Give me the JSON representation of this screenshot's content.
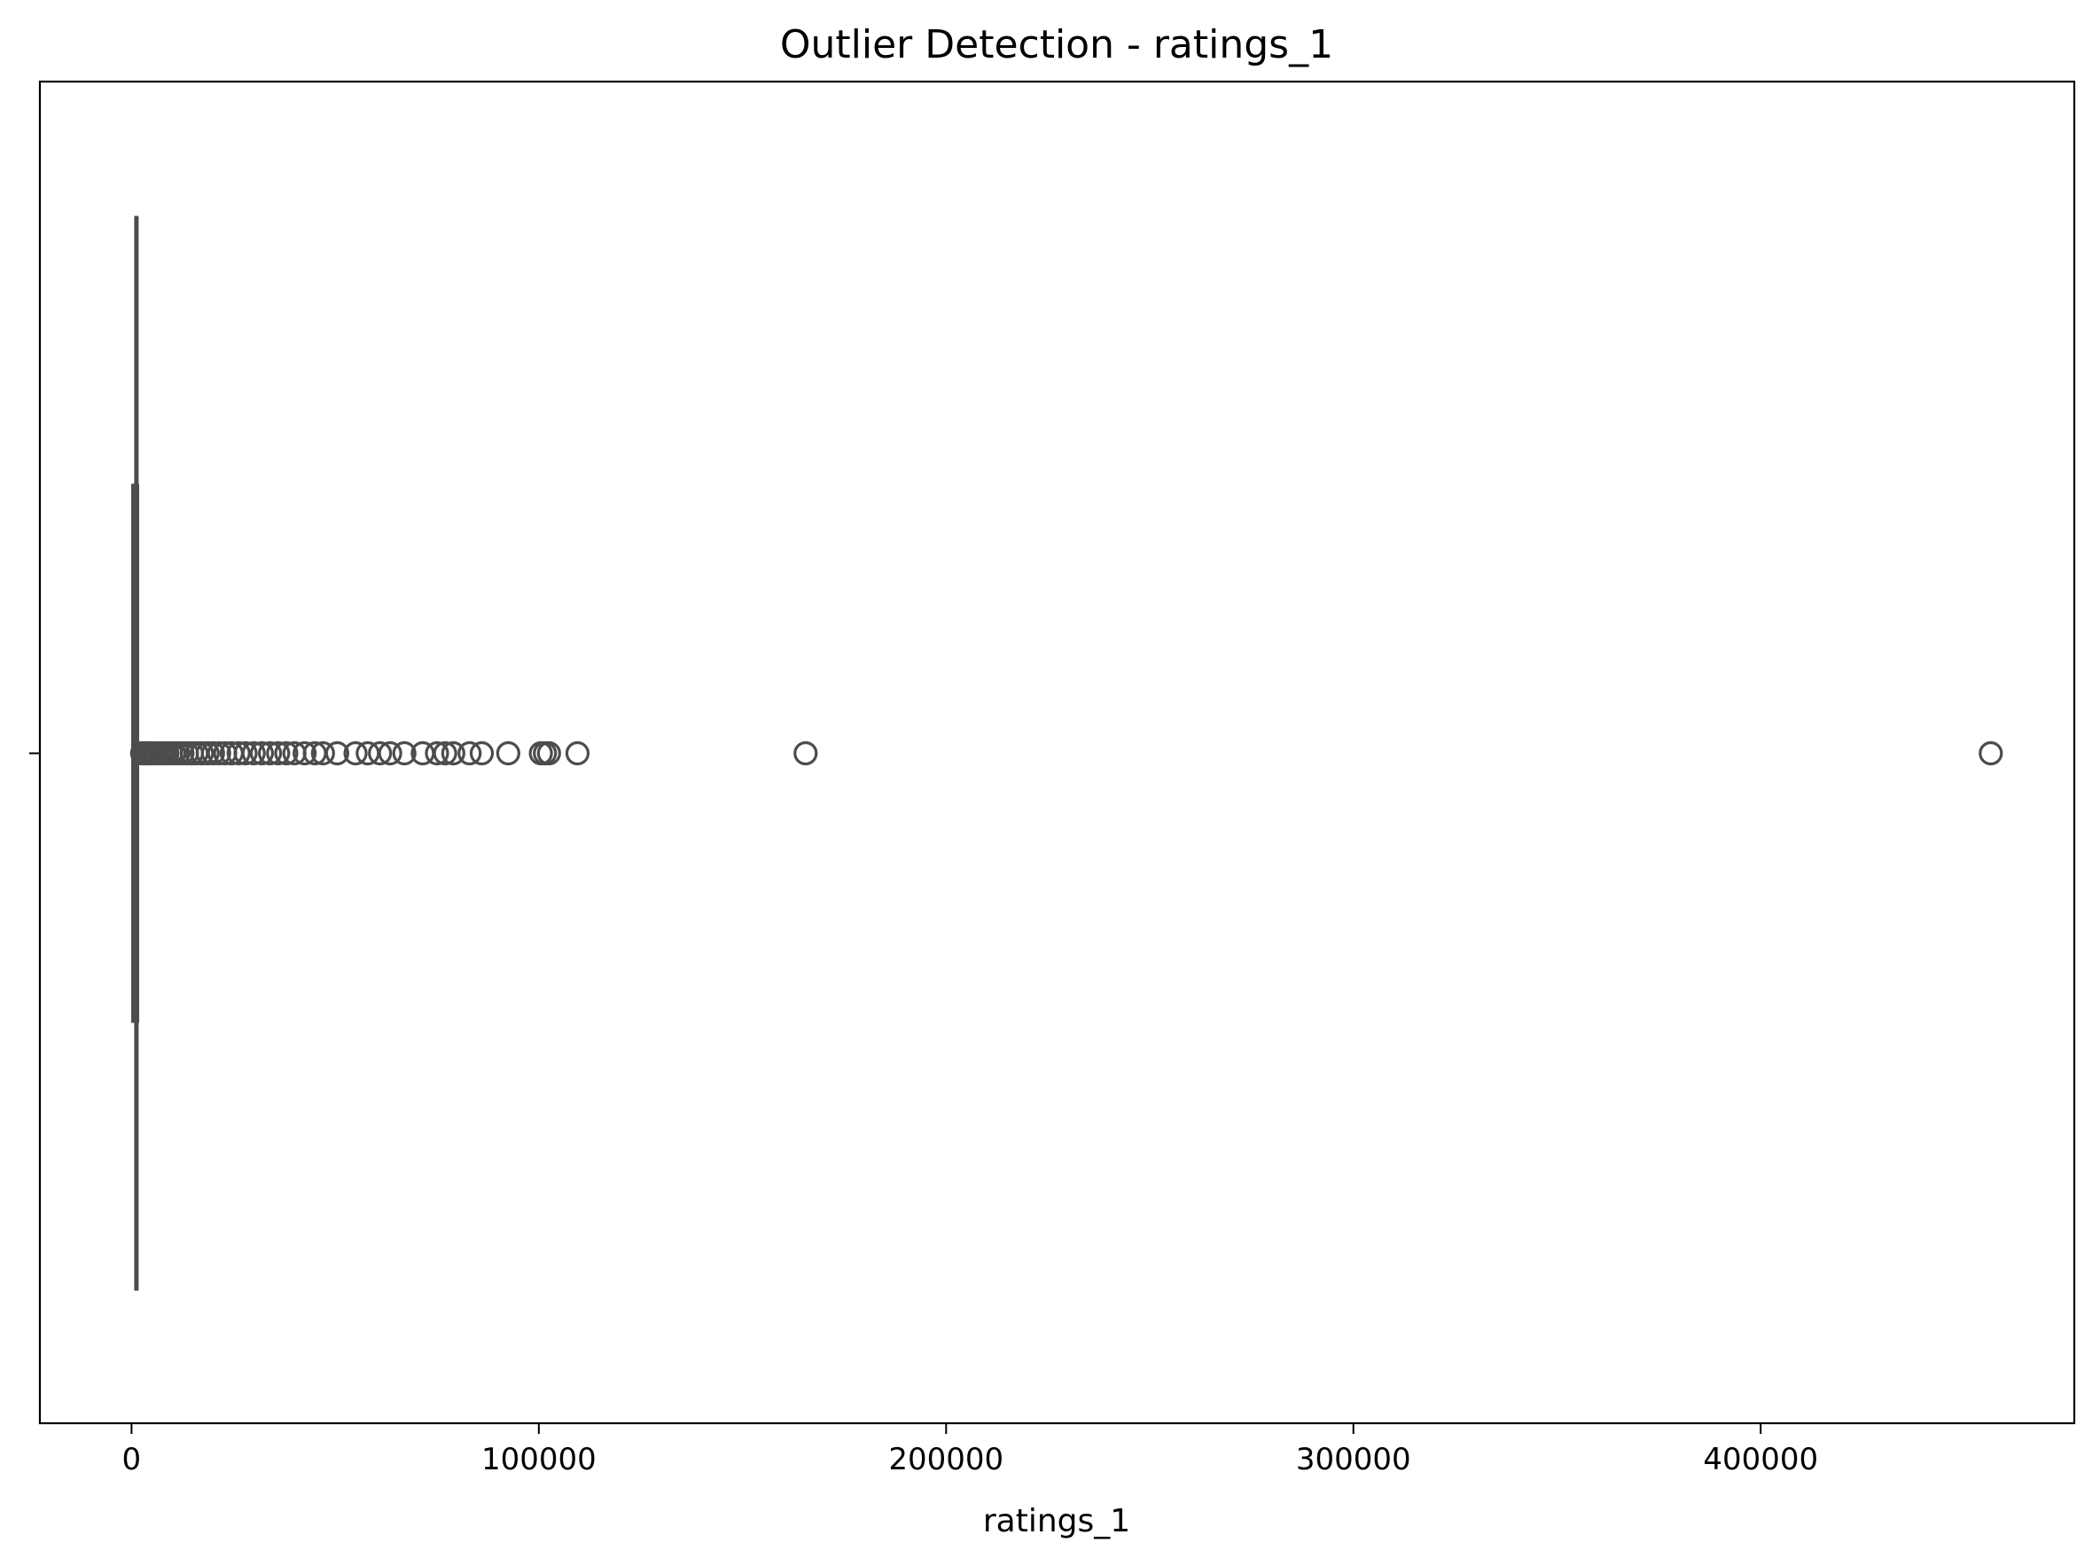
{
  "chart_data": {
    "type": "boxplot",
    "orientation": "horizontal",
    "title": "Outlier Detection - ratings_1",
    "xlabel": "ratings_1",
    "ylabel": "",
    "xlim": [
      -22500,
      477000
    ],
    "x_ticks": [
      0,
      100000,
      200000,
      300000,
      400000
    ],
    "x_tick_labels": [
      "0",
      "100000",
      "200000",
      "300000",
      "400000"
    ],
    "box_color": "#4c4c4c",
    "series": [
      {
        "stats": {
          "whisker_low": 0,
          "q1": 300,
          "median": 700,
          "q3": 1500,
          "whisker_high": 2400
        },
        "outliers": [
          2600,
          2900,
          3200,
          3500,
          3900,
          4300,
          4800,
          5300,
          5900,
          6500,
          7200,
          8000,
          8800,
          9700,
          10500,
          11500,
          12500,
          13600,
          14800,
          16000,
          17300,
          18700,
          20000,
          21500,
          23000,
          24600,
          26300,
          28000,
          30000,
          32000,
          34000,
          36000,
          38000,
          40000,
          42500,
          45000,
          47000,
          50500,
          55000,
          58000,
          61000,
          63500,
          67000,
          71500,
          75000,
          77000,
          79000,
          83000,
          86000,
          92500,
          100500,
          101500,
          102500,
          109500,
          165500,
          456500
        ]
      }
    ],
    "grid": false
  }
}
